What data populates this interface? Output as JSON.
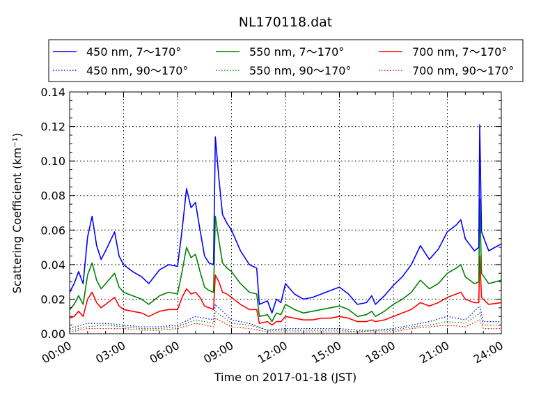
{
  "chart_data": {
    "type": "line",
    "title": "NL170118.dat",
    "xlabel": "Time on 2017-01-18 (JST)",
    "ylabel": "Scattering Coefficient (km⁻¹)",
    "xlim": [
      0,
      24
    ],
    "ylim": [
      0,
      0.14
    ],
    "grid": true,
    "legend_position": "top (above plot)",
    "x_ticks": [
      0,
      3,
      6,
      9,
      12,
      15,
      18,
      21,
      24
    ],
    "x_tick_labels": [
      "00:00",
      "03:00",
      "06:00",
      "09:00",
      "12:00",
      "15:00",
      "18:00",
      "21:00",
      "24:00"
    ],
    "y_ticks": [
      0,
      0.02,
      0.04,
      0.06,
      0.08,
      0.1,
      0.12,
      0.14
    ],
    "y_tick_labels": [
      "0.00",
      "0.02",
      "0.04",
      "0.06",
      "0.08",
      "0.10",
      "0.12",
      "0.14"
    ],
    "x_unit": "hours",
    "x_solid": [
      0,
      0.25,
      0.5,
      0.75,
      1,
      1.25,
      1.5,
      1.75,
      2,
      2.5,
      2.75,
      3,
      3.5,
      4,
      4.4,
      5,
      5.5,
      6,
      6.25,
      6.5,
      6.75,
      7,
      7.25,
      7.5,
      7.75,
      8,
      8.1,
      8.3,
      8.5,
      8.75,
      9,
      9.5,
      10,
      10.4,
      10.55,
      11,
      11.25,
      11.5,
      11.75,
      12,
      12.5,
      13,
      13.5,
      14,
      14.5,
      15,
      15.5,
      16,
      16.5,
      16.8,
      17,
      17.5,
      18,
      18.5,
      19,
      19.5,
      20,
      20.5,
      21,
      21.5,
      21.75,
      22,
      22.5,
      22.75,
      22.8,
      22.9,
      23.3,
      24
    ],
    "x_dotted": [
      0,
      1,
      2,
      3,
      4,
      5,
      6,
      7,
      8,
      8.1,
      9,
      10,
      11,
      12,
      13,
      14,
      15,
      16,
      17,
      18,
      19,
      20,
      21,
      22,
      22.8,
      23,
      24
    ],
    "series": [
      {
        "name": "450 nm, 7～170°",
        "color": "#0000ff",
        "style": "solid",
        "x_key": "x_solid",
        "values": [
          0.024,
          0.029,
          0.036,
          0.029,
          0.056,
          0.068,
          0.051,
          0.043,
          0.048,
          0.059,
          0.045,
          0.04,
          0.036,
          0.033,
          0.029,
          0.037,
          0.04,
          0.039,
          0.06,
          0.084,
          0.073,
          0.076,
          0.06,
          0.045,
          0.041,
          0.04,
          0.114,
          0.09,
          0.069,
          0.064,
          0.06,
          0.048,
          0.04,
          0.038,
          0.017,
          0.019,
          0.012,
          0.02,
          0.018,
          0.029,
          0.023,
          0.02,
          0.021,
          0.023,
          0.025,
          0.027,
          0.023,
          0.017,
          0.018,
          0.022,
          0.017,
          0.022,
          0.028,
          0.033,
          0.04,
          0.051,
          0.043,
          0.049,
          0.059,
          0.063,
          0.066,
          0.055,
          0.048,
          0.05,
          0.121,
          0.059,
          0.048,
          0.052
        ]
      },
      {
        "name": "550 nm, 7～170°",
        "color": "#008000",
        "style": "solid",
        "x_key": "x_solid",
        "values": [
          0.014,
          0.017,
          0.022,
          0.017,
          0.034,
          0.041,
          0.031,
          0.026,
          0.029,
          0.035,
          0.027,
          0.024,
          0.022,
          0.02,
          0.017,
          0.022,
          0.024,
          0.023,
          0.036,
          0.05,
          0.044,
          0.046,
          0.036,
          0.027,
          0.025,
          0.024,
          0.068,
          0.054,
          0.041,
          0.038,
          0.036,
          0.029,
          0.024,
          0.023,
          0.01,
          0.011,
          0.007,
          0.012,
          0.011,
          0.017,
          0.014,
          0.012,
          0.013,
          0.014,
          0.015,
          0.016,
          0.014,
          0.01,
          0.011,
          0.013,
          0.01,
          0.013,
          0.017,
          0.02,
          0.024,
          0.031,
          0.026,
          0.029,
          0.035,
          0.038,
          0.04,
          0.033,
          0.029,
          0.03,
          0.078,
          0.035,
          0.029,
          0.031
        ]
      },
      {
        "name": "700 nm, 7～170°",
        "color": "#ff0000",
        "style": "solid",
        "x_key": "x_solid",
        "values": [
          0.009,
          0.01,
          0.013,
          0.01,
          0.02,
          0.024,
          0.018,
          0.015,
          0.017,
          0.021,
          0.016,
          0.014,
          0.013,
          0.012,
          0.01,
          0.013,
          0.014,
          0.014,
          0.021,
          0.026,
          0.023,
          0.024,
          0.021,
          0.016,
          0.015,
          0.014,
          0.034,
          0.03,
          0.024,
          0.023,
          0.021,
          0.017,
          0.014,
          0.014,
          0.006,
          0.007,
          0.005,
          0.007,
          0.007,
          0.01,
          0.009,
          0.008,
          0.008,
          0.009,
          0.009,
          0.01,
          0.009,
          0.007,
          0.007,
          0.008,
          0.007,
          0.008,
          0.01,
          0.012,
          0.014,
          0.018,
          0.016,
          0.018,
          0.021,
          0.023,
          0.024,
          0.02,
          0.018,
          0.018,
          0.045,
          0.021,
          0.017,
          0.018
        ]
      },
      {
        "name": "450 nm, 90～170°",
        "color": "#0000ff",
        "style": "dotted",
        "x_key": "x_dotted",
        "values": [
          0.003,
          0.006,
          0.006,
          0.005,
          0.004,
          0.004,
          0.005,
          0.01,
          0.008,
          0.017,
          0.008,
          0.006,
          0.002,
          0.003,
          0.003,
          0.003,
          0.003,
          0.002,
          0.002,
          0.003,
          0.005,
          0.007,
          0.01,
          0.008,
          0.016,
          0.007,
          0.007
        ]
      },
      {
        "name": "550 nm, 90～170°",
        "color": "#008000",
        "style": "dotted",
        "x_key": "x_dotted",
        "values": [
          0.002,
          0.004,
          0.005,
          0.004,
          0.003,
          0.003,
          0.004,
          0.008,
          0.006,
          0.013,
          0.006,
          0.005,
          0.002,
          0.002,
          0.002,
          0.002,
          0.002,
          0.001,
          0.002,
          0.002,
          0.004,
          0.005,
          0.007,
          0.006,
          0.012,
          0.005,
          0.005
        ]
      },
      {
        "name": "700 nm, 90～170°",
        "color": "#ff0000",
        "style": "dotted",
        "x_key": "x_dotted",
        "values": [
          0.001,
          0.003,
          0.003,
          0.003,
          0.002,
          0.002,
          0.003,
          0.006,
          0.004,
          0.009,
          0.004,
          0.003,
          0.001,
          0.001,
          0.001,
          0.001,
          0.001,
          0.001,
          0.001,
          0.001,
          0.003,
          0.004,
          0.005,
          0.004,
          0.008,
          0.003,
          0.003
        ]
      }
    ]
  }
}
